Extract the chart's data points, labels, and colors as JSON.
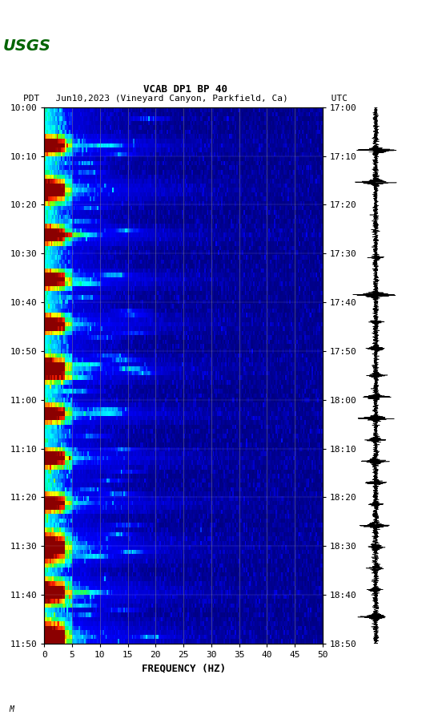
{
  "title_line1": "VCAB DP1 BP 40",
  "title_line2": "PDT   Jun10,2023 (Vineyard Canyon, Parkfield, Ca)        UTC",
  "xlabel": "FREQUENCY (HZ)",
  "freq_min": 0,
  "freq_max": 50,
  "freq_ticks": [
    0,
    5,
    10,
    15,
    20,
    25,
    30,
    35,
    40,
    45,
    50
  ],
  "time_labels_left": [
    "10:00",
    "10:10",
    "10:20",
    "10:30",
    "10:40",
    "10:50",
    "11:00",
    "11:10",
    "11:20",
    "11:30",
    "11:40",
    "11:50"
  ],
  "time_labels_right": [
    "17:00",
    "17:10",
    "17:20",
    "17:30",
    "17:40",
    "17:50",
    "18:00",
    "18:10",
    "18:20",
    "18:30",
    "18:40",
    "18:50"
  ],
  "n_time_steps": 120,
  "n_freq_bins": 200,
  "background_color": "#ffffff",
  "colormap_colors": [
    "#000080",
    "#0000ff",
    "#0080ff",
    "#00ffff",
    "#00ff80",
    "#80ff00",
    "#ffff00",
    "#ff8000",
    "#ff0000",
    "#800000"
  ],
  "grid_color": "#808080",
  "grid_linewidth": 0.5,
  "usgs_logo_color": "#006400",
  "font_family": "monospace"
}
